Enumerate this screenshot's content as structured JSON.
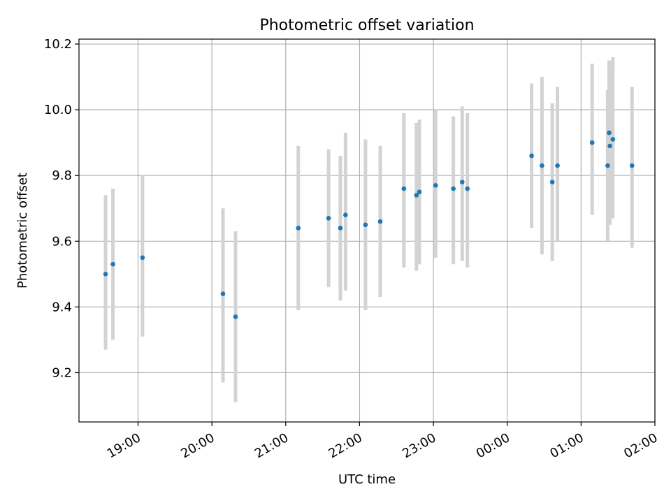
{
  "chart_data": {
    "type": "scatter",
    "title": "Photometric offset variation",
    "xlabel": "UTC time",
    "ylabel": "Photometric offset",
    "x_unit": "UTC time (hours from 18:00)",
    "xlim": [
      0.2,
      8.0
    ],
    "ylim": [
      9.05,
      10.215
    ],
    "x_ticks": [
      {
        "value": 1.0,
        "label": "19:00"
      },
      {
        "value": 2.0,
        "label": "20:00"
      },
      {
        "value": 3.0,
        "label": "21:00"
      },
      {
        "value": 4.0,
        "label": "22:00"
      },
      {
        "value": 5.0,
        "label": "23:00"
      },
      {
        "value": 6.0,
        "label": "00:00"
      },
      {
        "value": 7.0,
        "label": "01:00"
      },
      {
        "value": 8.0,
        "label": "02:00"
      }
    ],
    "y_ticks": [
      {
        "value": 9.2,
        "label": "9.2"
      },
      {
        "value": 9.4,
        "label": "9.4"
      },
      {
        "value": 9.6,
        "label": "9.6"
      },
      {
        "value": 9.8,
        "label": "9.8"
      },
      {
        "value": 10.0,
        "label": "10.0"
      },
      {
        "value": 10.2,
        "label": "10.2"
      }
    ],
    "grid": true,
    "legend": "none",
    "colors": {
      "point": "#1f77b4",
      "errorbar": "#d3d3d3",
      "grid": "#b0b0b0"
    },
    "series": [
      {
        "points": [
          {
            "x": 0.56,
            "y": 9.5,
            "err_low": 9.27,
            "err_high": 9.74
          },
          {
            "x": 0.66,
            "y": 9.53,
            "err_low": 9.3,
            "err_high": 9.76
          },
          {
            "x": 1.06,
            "y": 9.55,
            "err_low": 9.31,
            "err_high": 9.8
          },
          {
            "x": 2.15,
            "y": 9.44,
            "err_low": 9.17,
            "err_high": 9.7
          },
          {
            "x": 2.32,
            "y": 9.37,
            "err_low": 9.11,
            "err_high": 9.63
          },
          {
            "x": 3.17,
            "y": 9.64,
            "err_low": 9.39,
            "err_high": 9.89
          },
          {
            "x": 3.58,
            "y": 9.67,
            "err_low": 9.46,
            "err_high": 9.88
          },
          {
            "x": 3.74,
            "y": 9.64,
            "err_low": 9.42,
            "err_high": 9.86
          },
          {
            "x": 3.81,
            "y": 9.68,
            "err_low": 9.45,
            "err_high": 9.93
          },
          {
            "x": 4.08,
            "y": 9.65,
            "err_low": 9.39,
            "err_high": 9.91
          },
          {
            "x": 4.28,
            "y": 9.66,
            "err_low": 9.43,
            "err_high": 9.89
          },
          {
            "x": 4.6,
            "y": 9.76,
            "err_low": 9.52,
            "err_high": 9.99
          },
          {
            "x": 4.77,
            "y": 9.74,
            "err_low": 9.51,
            "err_high": 9.96
          },
          {
            "x": 4.81,
            "y": 9.75,
            "err_low": 9.53,
            "err_high": 9.97
          },
          {
            "x": 5.03,
            "y": 9.77,
            "err_low": 9.55,
            "err_high": 10.0
          },
          {
            "x": 5.27,
            "y": 9.76,
            "err_low": 9.53,
            "err_high": 9.98
          },
          {
            "x": 5.39,
            "y": 9.78,
            "err_low": 9.54,
            "err_high": 10.01
          },
          {
            "x": 5.46,
            "y": 9.76,
            "err_low": 9.52,
            "err_high": 9.99
          },
          {
            "x": 6.33,
            "y": 9.86,
            "err_low": 9.64,
            "err_high": 10.08
          },
          {
            "x": 6.47,
            "y": 9.83,
            "err_low": 9.56,
            "err_high": 10.1
          },
          {
            "x": 6.61,
            "y": 9.78,
            "err_low": 9.54,
            "err_high": 10.02
          },
          {
            "x": 6.68,
            "y": 9.83,
            "err_low": 9.6,
            "err_high": 10.07
          },
          {
            "x": 7.15,
            "y": 9.9,
            "err_low": 9.68,
            "err_high": 10.14
          },
          {
            "x": 7.36,
            "y": 9.83,
            "err_low": 9.6,
            "err_high": 10.06
          },
          {
            "x": 7.38,
            "y": 9.93,
            "err_low": 9.7,
            "err_high": 10.15
          },
          {
            "x": 7.39,
            "y": 9.89,
            "err_low": 9.65,
            "err_high": 10.13
          },
          {
            "x": 7.43,
            "y": 9.91,
            "err_low": 9.67,
            "err_high": 10.16
          },
          {
            "x": 7.69,
            "y": 9.83,
            "err_low": 9.58,
            "err_high": 10.07
          }
        ]
      }
    ]
  }
}
